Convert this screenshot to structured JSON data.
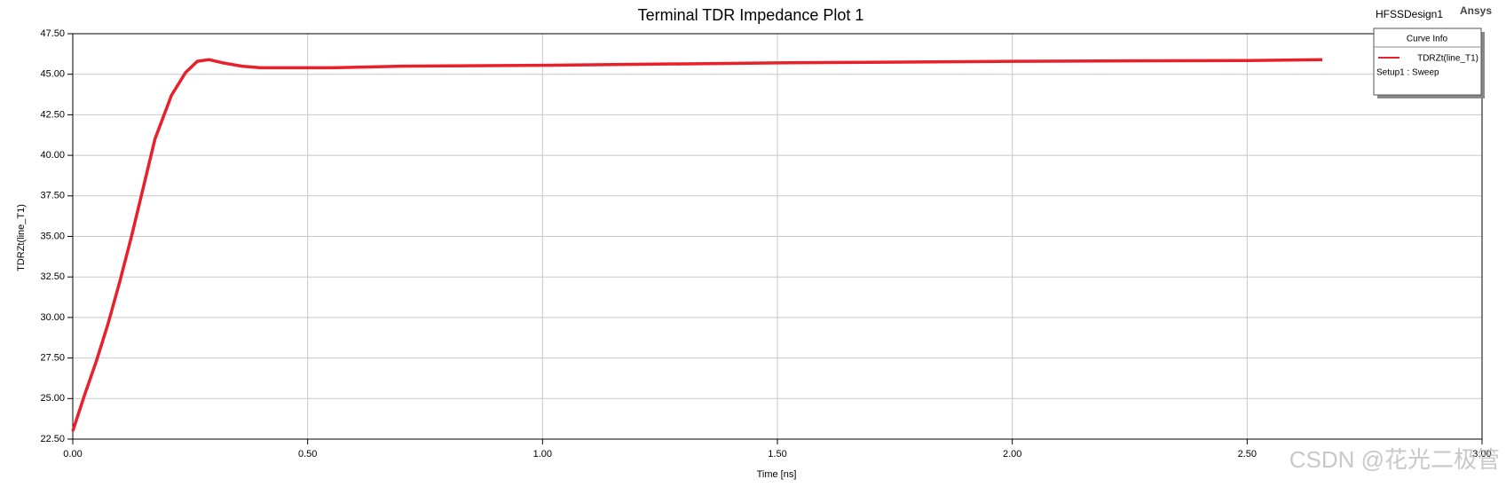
{
  "chart_data": {
    "type": "line",
    "title": "Terminal TDR Impedance Plot 1",
    "design": "HFSSDesign1",
    "brand": "Ansys",
    "watermark": "CSDN @花光二极管",
    "x_label": "Time [ns]",
    "y_label": "TDRZt(line_T1)",
    "legend_title": "Curve Info",
    "legend_note": "Setup1 : Sweep",
    "legend_position": "top-right",
    "grid": true,
    "xlim": [
      0,
      3
    ],
    "ylim": [
      22.5,
      47.5
    ],
    "xticks": [
      {
        "value": 0,
        "label": "0.00"
      },
      {
        "value": 0.5,
        "label": "0.50"
      },
      {
        "value": 1,
        "label": "1.00"
      },
      {
        "value": 1.5,
        "label": "1.50"
      },
      {
        "value": 2,
        "label": "2.00"
      },
      {
        "value": 2.5,
        "label": "2.50"
      },
      {
        "value": 3,
        "label": "3.00"
      }
    ],
    "yticks": [
      {
        "value": 22.5,
        "label": "22.50"
      },
      {
        "value": 25,
        "label": "25.00"
      },
      {
        "value": 27.5,
        "label": "27.50"
      },
      {
        "value": 30,
        "label": "30.00"
      },
      {
        "value": 32.5,
        "label": "32.50"
      },
      {
        "value": 35,
        "label": "35.00"
      },
      {
        "value": 37.5,
        "label": "37.50"
      },
      {
        "value": 40,
        "label": "40.00"
      },
      {
        "value": 42.5,
        "label": "42.50"
      },
      {
        "value": 45,
        "label": "45.00"
      },
      {
        "value": 47.5,
        "label": "47.50"
      }
    ],
    "x": [
      0,
      0.025,
      0.05,
      0.075,
      0.1,
      0.125,
      0.15,
      0.175,
      0.21,
      0.24,
      0.265,
      0.29,
      0.32,
      0.36,
      0.4,
      0.55,
      0.7,
      1.0,
      1.5,
      2.0,
      2.5,
      2.66
    ],
    "series": [
      {
        "name": "TDRZt(line_T1)",
        "color": "#e8202a",
        "values": [
          23.0,
          25.2,
          27.3,
          29.6,
          32.2,
          35.0,
          38.0,
          41.0,
          43.7,
          45.1,
          45.8,
          45.9,
          45.7,
          45.5,
          45.4,
          45.4,
          45.5,
          45.55,
          45.7,
          45.8,
          45.85,
          45.9
        ]
      }
    ]
  }
}
